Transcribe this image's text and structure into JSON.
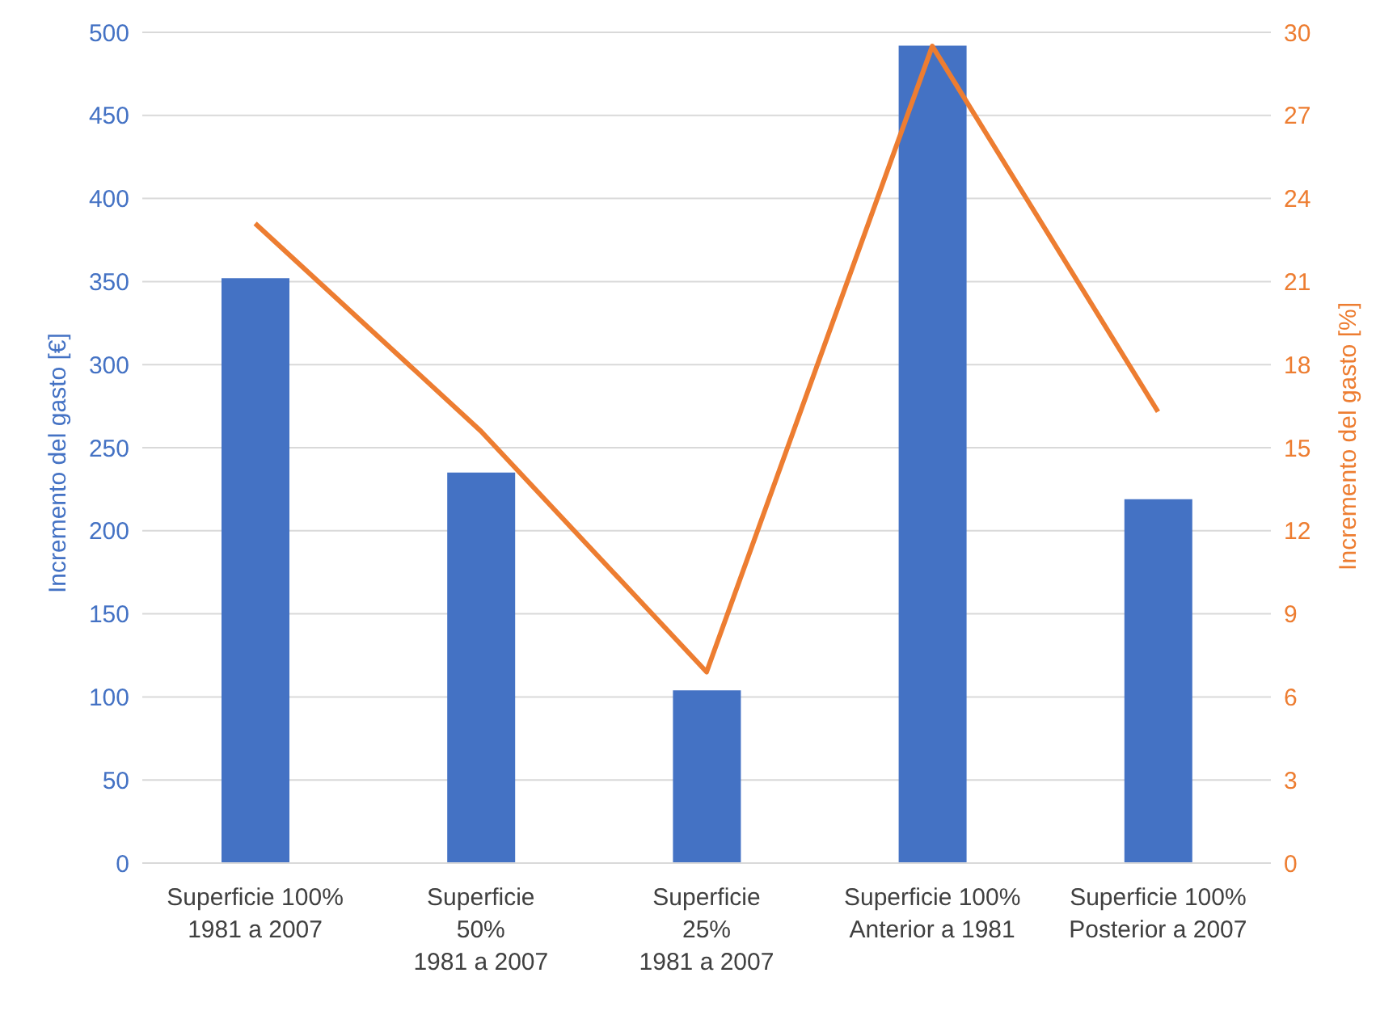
{
  "chart_data": {
    "type": "bar",
    "categories": [
      "Superficie 100%\n1981 a 2007",
      "Superficie\n50%\n1981 a 2007",
      "Superficie\n25%\n1981 a 2007",
      "Superficie 100%\nAnterior a 1981",
      "Superficie 100%\nPosterior a 2007"
    ],
    "ylabel": "Incremento del gasto [€]",
    "y2label": "Incremento del gasto [%]",
    "series": [
      {
        "color": "#4472c4",
        "values": [
          352,
          235,
          104,
          492,
          219
        ]
      },
      {
        "type": "line",
        "axis": "y2",
        "color": "#ed7d31",
        "values": [
          23.1,
          15.6,
          6.9,
          29.5,
          16.3
        ]
      }
    ],
    "ylim": [
      0,
      500
    ],
    "yticks": [
      0,
      50,
      100,
      150,
      200,
      250,
      300,
      350,
      400,
      450,
      500
    ],
    "y2lim": [
      0,
      30
    ],
    "y2ticks": [
      0,
      3,
      6,
      9,
      12,
      15,
      18,
      21,
      24,
      27,
      30
    ],
    "grid": "y",
    "legend": false,
    "marker": "none"
  }
}
